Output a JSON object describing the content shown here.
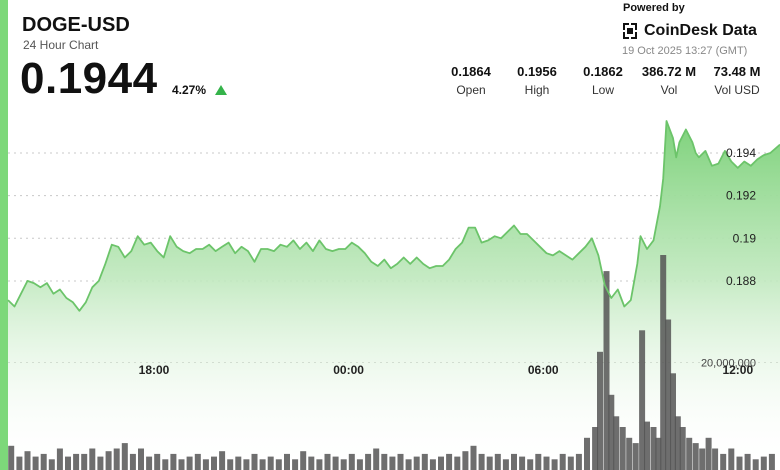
{
  "header": {
    "title": "DOGE-USD",
    "subtitle": "24 Hour Chart",
    "price": "0.1944",
    "change": "4.27%",
    "powered_by": "Powered by",
    "brand": "CoinDesk Data",
    "timestamp": "19 Oct 2025 13:27 (GMT)"
  },
  "stats": [
    {
      "value": "0.1864",
      "label": "Open"
    },
    {
      "value": "0.1956",
      "label": "High"
    },
    {
      "value": "0.1862",
      "label": "Low"
    },
    {
      "value": "386.72 M",
      "label": "Vol"
    },
    {
      "value": "73.48 M",
      "label": "Vol USD"
    }
  ],
  "colors": {
    "accent": "#5cc35a",
    "line": "#6cc46a",
    "area_top": "#7ed27b",
    "volume": "#555555"
  },
  "chart_data": {
    "type": "area",
    "title": "",
    "x_tick_labels": [
      "18:00",
      "00:00",
      "06:00",
      "12:00"
    ],
    "x_tick_hours": [
      18,
      24,
      30,
      36
    ],
    "x_range_hours": [
      13.5,
      37.3
    ],
    "y_tick_labels": [
      "0.194",
      "0.192",
      "0.19",
      "0.188"
    ],
    "y_tick_values": [
      0.194,
      0.192,
      0.19,
      0.188
    ],
    "ylim": [
      0.1857,
      0.19625
    ],
    "volume_tick_label": "20,000,000",
    "volume_tick_value": 20000000,
    "volume_max": 40000000,
    "grid": "dotted horizontal",
    "series": [
      {
        "values": [
          [
            13.5,
            0.1871
          ],
          [
            13.7,
            0.1868
          ],
          [
            13.9,
            0.1874
          ],
          [
            14.1,
            0.188
          ],
          [
            14.3,
            0.1879
          ],
          [
            14.5,
            0.1877
          ],
          [
            14.7,
            0.1879
          ],
          [
            14.9,
            0.1874
          ],
          [
            15.1,
            0.1876
          ],
          [
            15.3,
            0.1872
          ],
          [
            15.5,
            0.187
          ],
          [
            15.7,
            0.1866
          ],
          [
            15.9,
            0.187
          ],
          [
            16.1,
            0.1877
          ],
          [
            16.3,
            0.188
          ],
          [
            16.5,
            0.1888
          ],
          [
            16.7,
            0.1897
          ],
          [
            16.9,
            0.1896
          ],
          [
            17.1,
            0.1891
          ],
          [
            17.3,
            0.1894
          ],
          [
            17.5,
            0.1901
          ],
          [
            17.7,
            0.1897
          ],
          [
            17.9,
            0.1898
          ],
          [
            18.1,
            0.1894
          ],
          [
            18.3,
            0.1891
          ],
          [
            18.5,
            0.1901
          ],
          [
            18.7,
            0.1896
          ],
          [
            18.9,
            0.1894
          ],
          [
            19.1,
            0.1893
          ],
          [
            19.3,
            0.1895
          ],
          [
            19.5,
            0.1895
          ],
          [
            19.7,
            0.1897
          ],
          [
            19.9,
            0.1894
          ],
          [
            20.1,
            0.1896
          ],
          [
            20.3,
            0.1898
          ],
          [
            20.5,
            0.1893
          ],
          [
            20.7,
            0.1896
          ],
          [
            20.9,
            0.1894
          ],
          [
            21.1,
            0.1889
          ],
          [
            21.3,
            0.1895
          ],
          [
            21.5,
            0.1895
          ],
          [
            21.7,
            0.1894
          ],
          [
            21.9,
            0.1897
          ],
          [
            22.1,
            0.1896
          ],
          [
            22.3,
            0.1899
          ],
          [
            22.5,
            0.1895
          ],
          [
            22.7,
            0.1898
          ],
          [
            22.9,
            0.1894
          ],
          [
            23.1,
            0.1899
          ],
          [
            23.3,
            0.1895
          ],
          [
            23.5,
            0.1894
          ],
          [
            23.7,
            0.1895
          ],
          [
            23.9,
            0.1895
          ],
          [
            24.1,
            0.1898
          ],
          [
            24.3,
            0.1896
          ],
          [
            24.5,
            0.1893
          ],
          [
            24.7,
            0.1889
          ],
          [
            24.9,
            0.1887
          ],
          [
            25.1,
            0.189
          ],
          [
            25.3,
            0.1886
          ],
          [
            25.5,
            0.1888
          ],
          [
            25.7,
            0.1891
          ],
          [
            25.9,
            0.1888
          ],
          [
            26.1,
            0.1891
          ],
          [
            26.3,
            0.1888
          ],
          [
            26.5,
            0.1886
          ],
          [
            26.7,
            0.1887
          ],
          [
            26.9,
            0.1887
          ],
          [
            27.1,
            0.189
          ],
          [
            27.3,
            0.1895
          ],
          [
            27.5,
            0.1898
          ],
          [
            27.7,
            0.1905
          ],
          [
            27.9,
            0.1905
          ],
          [
            28.1,
            0.1898
          ],
          [
            28.3,
            0.1899
          ],
          [
            28.5,
            0.1901
          ],
          [
            28.7,
            0.19
          ],
          [
            28.9,
            0.1903
          ],
          [
            29.1,
            0.1906
          ],
          [
            29.3,
            0.1902
          ],
          [
            29.5,
            0.1902
          ],
          [
            29.7,
            0.1899
          ],
          [
            29.9,
            0.1896
          ],
          [
            30.1,
            0.1893
          ],
          [
            30.3,
            0.1892
          ],
          [
            30.5,
            0.1894
          ],
          [
            30.7,
            0.1892
          ],
          [
            30.9,
            0.189
          ],
          [
            31.1,
            0.1893
          ],
          [
            31.3,
            0.1896
          ],
          [
            31.5,
            0.19
          ],
          [
            31.7,
            0.1892
          ],
          [
            31.9,
            0.1878
          ],
          [
            32.1,
            0.1872
          ],
          [
            32.3,
            0.1876
          ],
          [
            32.5,
            0.1868
          ],
          [
            32.7,
            0.1871
          ],
          [
            32.9,
            0.1888
          ],
          [
            33.0,
            0.1901
          ],
          [
            33.2,
            0.1895
          ],
          [
            33.4,
            0.1899
          ],
          [
            33.6,
            0.1915
          ],
          [
            33.7,
            0.1928
          ],
          [
            33.8,
            0.1955
          ],
          [
            34.0,
            0.1947
          ],
          [
            34.1,
            0.1938
          ],
          [
            34.2,
            0.1945
          ],
          [
            34.4,
            0.1951
          ],
          [
            34.6,
            0.1945
          ],
          [
            34.7,
            0.194
          ],
          [
            34.8,
            0.1938
          ],
          [
            35.0,
            0.1941
          ],
          [
            35.2,
            0.1934
          ],
          [
            35.4,
            0.1935
          ],
          [
            35.6,
            0.1941
          ],
          [
            35.8,
            0.1936
          ],
          [
            36.0,
            0.1933
          ],
          [
            36.2,
            0.1936
          ],
          [
            36.4,
            0.1934
          ],
          [
            36.6,
            0.1937
          ],
          [
            36.8,
            0.1939
          ],
          [
            37.0,
            0.194
          ],
          [
            37.3,
            0.1944
          ]
        ]
      }
    ],
    "volume_values": [
      [
        13.6,
        4500000.0
      ],
      [
        13.85,
        2500000.0
      ],
      [
        14.1,
        3500000.0
      ],
      [
        14.35,
        2500000.0
      ],
      [
        14.6,
        3000000.0
      ],
      [
        14.85,
        2000000.0
      ],
      [
        15.1,
        4000000.0
      ],
      [
        15.35,
        2500000.0
      ],
      [
        15.6,
        3000000.0
      ],
      [
        15.85,
        3000000.0
      ],
      [
        16.1,
        4000000.0
      ],
      [
        16.35,
        2500000.0
      ],
      [
        16.6,
        3500000.0
      ],
      [
        16.85,
        4000000.0
      ],
      [
        17.1,
        5000000.0
      ],
      [
        17.35,
        3000000.0
      ],
      [
        17.6,
        4000000.0
      ],
      [
        17.85,
        2500000.0
      ],
      [
        18.1,
        3000000.0
      ],
      [
        18.35,
        2000000.0
      ],
      [
        18.6,
        3000000.0
      ],
      [
        18.85,
        2000000.0
      ],
      [
        19.1,
        2500000.0
      ],
      [
        19.35,
        3000000.0
      ],
      [
        19.6,
        2000000.0
      ],
      [
        19.85,
        2500000.0
      ],
      [
        20.1,
        3500000.0
      ],
      [
        20.35,
        2000000.0
      ],
      [
        20.6,
        2500000.0
      ],
      [
        20.85,
        2000000.0
      ],
      [
        21.1,
        3000000.0
      ],
      [
        21.35,
        2000000.0
      ],
      [
        21.6,
        2500000.0
      ],
      [
        21.85,
        2000000.0
      ],
      [
        22.1,
        3000000.0
      ],
      [
        22.35,
        2000000.0
      ],
      [
        22.6,
        3500000.0
      ],
      [
        22.85,
        2500000.0
      ],
      [
        23.1,
        2000000.0
      ],
      [
        23.35,
        3000000.0
      ],
      [
        23.6,
        2500000.0
      ],
      [
        23.85,
        2000000.0
      ],
      [
        24.1,
        3000000.0
      ],
      [
        24.35,
        2000000.0
      ],
      [
        24.6,
        3000000.0
      ],
      [
        24.85,
        4000000.0
      ],
      [
        25.1,
        3000000.0
      ],
      [
        25.35,
        2500000.0
      ],
      [
        25.6,
        3000000.0
      ],
      [
        25.85,
        2000000.0
      ],
      [
        26.1,
        2500000.0
      ],
      [
        26.35,
        3000000.0
      ],
      [
        26.6,
        2000000.0
      ],
      [
        26.85,
        2500000.0
      ],
      [
        27.1,
        3000000.0
      ],
      [
        27.35,
        2500000.0
      ],
      [
        27.6,
        3500000.0
      ],
      [
        27.85,
        4500000.0
      ],
      [
        28.1,
        3000000.0
      ],
      [
        28.35,
        2500000.0
      ],
      [
        28.6,
        3000000.0
      ],
      [
        28.85,
        2000000.0
      ],
      [
        29.1,
        3000000.0
      ],
      [
        29.35,
        2500000.0
      ],
      [
        29.6,
        2000000.0
      ],
      [
        29.85,
        3000000.0
      ],
      [
        30.1,
        2500000.0
      ],
      [
        30.35,
        2000000.0
      ],
      [
        30.6,
        3000000.0
      ],
      [
        30.85,
        2500000.0
      ],
      [
        31.1,
        3000000.0
      ],
      [
        31.35,
        6000000.0
      ],
      [
        31.6,
        8000000.0
      ],
      [
        31.75,
        22000000.0
      ],
      [
        31.95,
        37000000.0
      ],
      [
        32.1,
        14000000.0
      ],
      [
        32.25,
        10000000.0
      ],
      [
        32.45,
        8000000.0
      ],
      [
        32.65,
        6000000.0
      ],
      [
        32.85,
        5000000.0
      ],
      [
        33.05,
        26000000.0
      ],
      [
        33.2,
        9000000.0
      ],
      [
        33.4,
        8000000.0
      ],
      [
        33.55,
        6000000.0
      ],
      [
        33.7,
        40000000.0
      ],
      [
        33.85,
        28000000.0
      ],
      [
        34.0,
        18000000.0
      ],
      [
        34.15,
        10000000.0
      ],
      [
        34.3,
        8000000.0
      ],
      [
        34.5,
        6000000.0
      ],
      [
        34.7,
        5000000.0
      ],
      [
        34.9,
        4000000.0
      ],
      [
        35.1,
        6000000.0
      ],
      [
        35.3,
        4000000.0
      ],
      [
        35.55,
        3000000.0
      ],
      [
        35.8,
        4000000.0
      ],
      [
        36.05,
        2500000.0
      ],
      [
        36.3,
        3000000.0
      ],
      [
        36.55,
        2000000.0
      ],
      [
        36.8,
        2500000.0
      ],
      [
        37.05,
        3000000.0
      ]
    ]
  }
}
